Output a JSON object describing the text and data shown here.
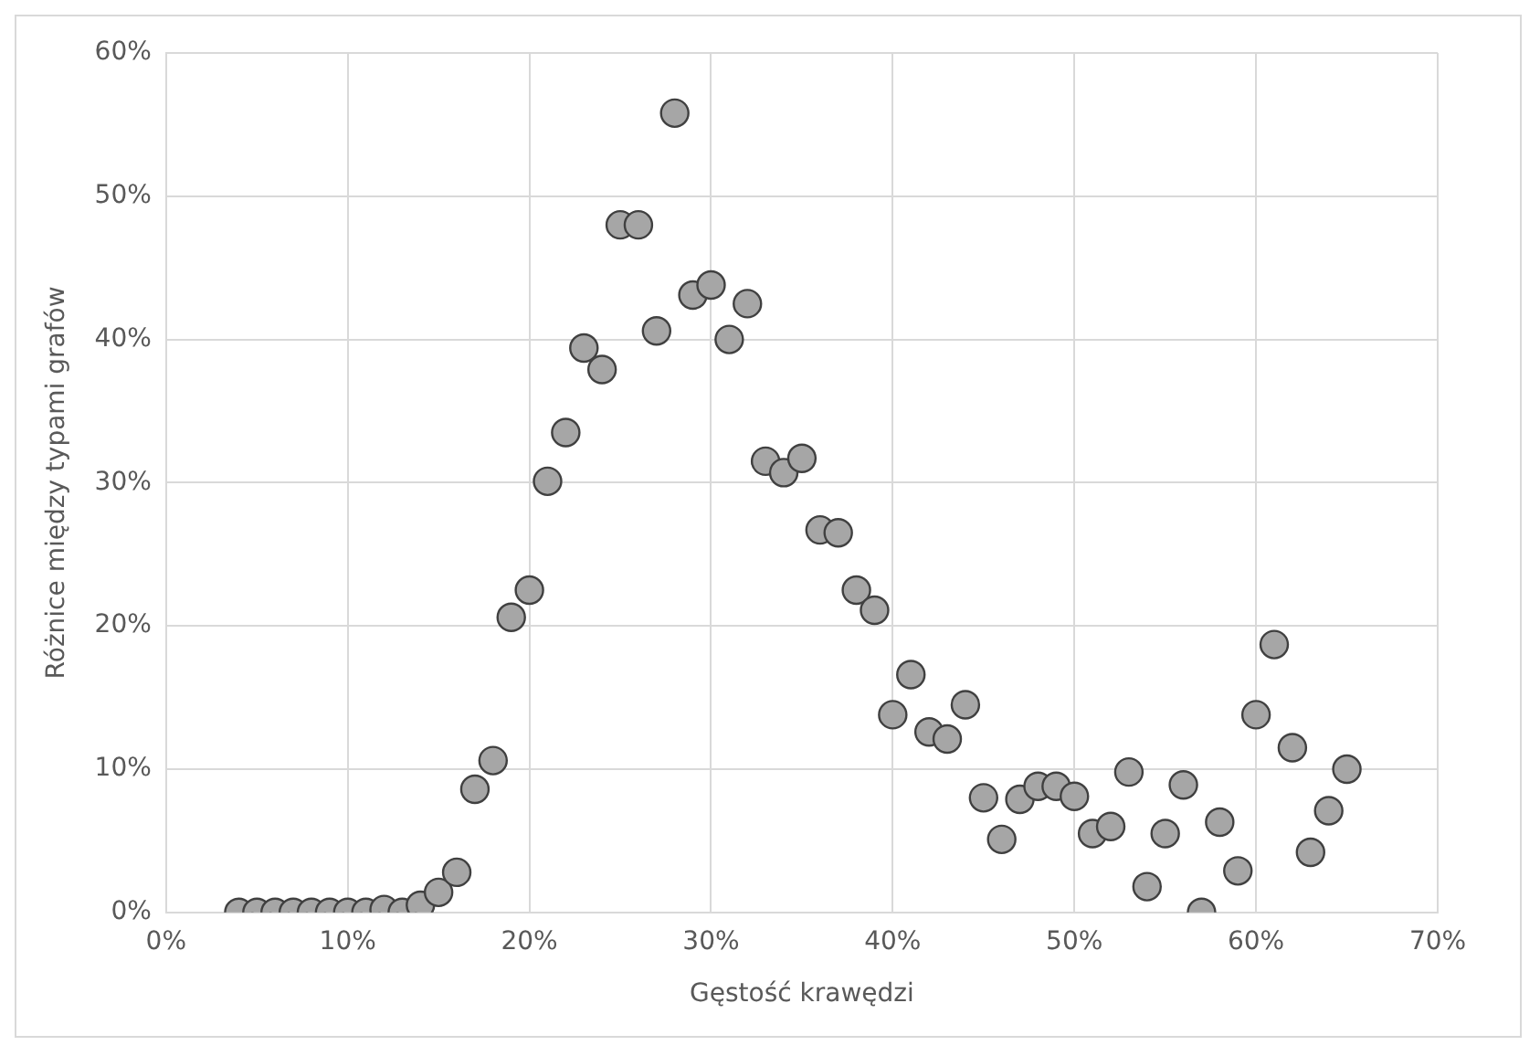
{
  "chart_data": {
    "type": "scatter",
    "xlabel": "Gęstość krawędzi",
    "ylabel": "Różnice między typami grafów",
    "x": [
      4,
      5,
      6,
      7,
      8,
      9,
      10,
      11,
      12,
      13,
      14,
      15,
      16,
      17,
      18,
      19,
      20,
      21,
      22,
      23,
      24,
      25,
      26,
      27,
      28,
      29,
      30,
      31,
      32,
      33,
      34,
      35,
      36,
      37,
      38,
      39,
      40,
      41,
      42,
      43,
      44,
      45,
      46,
      47,
      48,
      49,
      50,
      51,
      52,
      53,
      54,
      55,
      56,
      57,
      58,
      59,
      60,
      61,
      62,
      63,
      64,
      65
    ],
    "series": [
      {
        "color": "#a6a6a6",
        "values": [
          0,
          0,
          0,
          0,
          0,
          0,
          0,
          0,
          0.2,
          0,
          0.5,
          1.4,
          2.8,
          8.6,
          10.6,
          20.6,
          22.5,
          30.1,
          33.5,
          39.4,
          37.9,
          48.0,
          48.0,
          40.6,
          55.8,
          43.1,
          43.8,
          40.0,
          42.5,
          31.5,
          30.7,
          31.7,
          26.7,
          26.5,
          22.5,
          21.1,
          13.8,
          16.6,
          12.6,
          12.1,
          14.5,
          8.0,
          5.1,
          7.9,
          8.8,
          8.8,
          8.1,
          5.5,
          6.0,
          9.8,
          1.8,
          5.5,
          8.9,
          0,
          6.3,
          2.9,
          13.8,
          18.7,
          11.5,
          4.2,
          7.1,
          10.0
        ]
      }
    ],
    "xlim": [
      0,
      70
    ],
    "xticks": [
      {
        "value": 0,
        "label": "0%"
      },
      {
        "value": 10,
        "label": "10%"
      },
      {
        "value": 20,
        "label": "20%"
      },
      {
        "value": 30,
        "label": "30%"
      },
      {
        "value": 40,
        "label": "40%"
      },
      {
        "value": 50,
        "label": "50%"
      },
      {
        "value": 60,
        "label": "60%"
      },
      {
        "value": 70,
        "label": "70%"
      }
    ],
    "ylim": [
      0,
      60
    ],
    "yticks": [
      {
        "value": 0,
        "label": "0%"
      },
      {
        "value": 10,
        "label": "10%"
      },
      {
        "value": 20,
        "label": "20%"
      },
      {
        "value": 30,
        "label": "30%"
      },
      {
        "value": 40,
        "label": "40%"
      },
      {
        "value": 50,
        "label": "50%"
      },
      {
        "value": 60,
        "label": "60%"
      }
    ],
    "grid": true,
    "marker": "circle",
    "legend": false
  }
}
